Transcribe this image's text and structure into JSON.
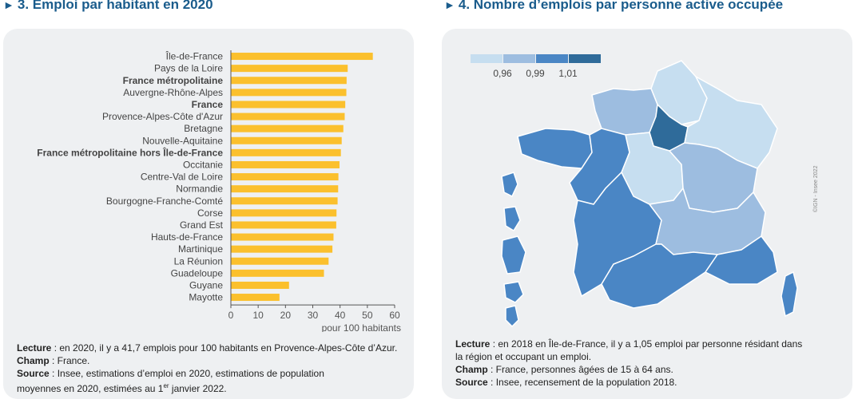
{
  "left": {
    "title": "3. Emploi par habitant en 2020",
    "chart_data": {
      "type": "bar",
      "orientation": "horizontal",
      "categories": [
        "Île-de-France",
        "Pays de la Loire",
        "France métropolitaine",
        "Auvergne-Rhône-Alpes",
        "France",
        "Provence-Alpes-Côte d'Azur",
        "Bretagne",
        "Nouvelle-Aquitaine",
        "France métropolitaine hors Île-de-France",
        "Occitanie",
        "Centre-Val de Loire",
        "Normandie",
        "Bourgogne-Franche-Comté",
        "Corse",
        "Grand Est",
        "Hauts-de-France",
        "Martinique",
        "La Réunion",
        "Guadeloupe",
        "Guyane",
        "Mayotte"
      ],
      "bold_categories": [
        "France métropolitaine",
        "France",
        "France métropolitaine hors Île-de-France"
      ],
      "values": [
        52.0,
        42.8,
        42.4,
        42.3,
        41.9,
        41.7,
        41.2,
        40.6,
        40.3,
        39.8,
        39.4,
        39.3,
        39.1,
        38.7,
        38.6,
        37.6,
        37.2,
        35.8,
        34.1,
        21.3,
        17.8
      ],
      "xlim": [
        0,
        60
      ],
      "xticks": [
        "0",
        "10",
        "20",
        "30",
        "40",
        "50",
        "60"
      ],
      "xlabel": "pour 100 habitants",
      "bar_color": "#fbc02d",
      "grid": false
    },
    "notes": {
      "lecture_label": "Lecture",
      "lecture_text": " : en 2020, il y a 41,7 emplois pour 100 habitants en Provence-Alpes-Côte d’Azur.",
      "champ_label": "Champ",
      "champ_text": " : France.",
      "source_label": "Source",
      "source_text_1": " : Insee, estimations d’emploi en 2020, estimations de population",
      "source_text_2": "moyennes en 2020, estimées au 1",
      "source_sup": "er",
      "source_text_3": " janvier 2022."
    }
  },
  "right": {
    "title": "4. Nombre d’emplois par personne active occupée",
    "legend": {
      "thresholds": [
        "0,96",
        "0,99",
        "1,01"
      ],
      "colors": [
        "#c6def0",
        "#9dbde0",
        "#4a86c5",
        "#2f6b9a"
      ]
    },
    "map_data": {
      "type": "choropleth",
      "regions": [
        {
          "name": "Hauts-de-France",
          "class": 1
        },
        {
          "name": "Normandie",
          "class": 2
        },
        {
          "name": "Île-de-France",
          "class": 4
        },
        {
          "name": "Grand Est",
          "class": 1
        },
        {
          "name": "Bretagne",
          "class": 3
        },
        {
          "name": "Pays de la Loire",
          "class": 3
        },
        {
          "name": "Centre-Val de Loire",
          "class": 1
        },
        {
          "name": "Bourgogne-Franche-Comté",
          "class": 2
        },
        {
          "name": "Nouvelle-Aquitaine",
          "class": 3
        },
        {
          "name": "Auvergne-Rhône-Alpes",
          "class": 2
        },
        {
          "name": "Occitanie",
          "class": 3
        },
        {
          "name": "Provence-Alpes-Côte d'Azur",
          "class": 3
        },
        {
          "name": "Corse",
          "class": 3
        },
        {
          "name": "Guadeloupe",
          "class": 3
        },
        {
          "name": "Martinique",
          "class": 3
        },
        {
          "name": "Guyane",
          "class": 3
        },
        {
          "name": "La Réunion",
          "class": 3
        },
        {
          "name": "Mayotte",
          "class": 3
        }
      ]
    },
    "credit": "©IGN - Insee 2022",
    "notes": {
      "lecture_label": "Lecture",
      "lecture_text_1": " : en 2018 en Île-de-France, il y a 1,05 emploi par personne résidant dans",
      "lecture_text_2": "la région et occupant un emploi.",
      "champ_label": "Champ",
      "champ_text": " : France, personnes âgées de 15 à 64 ans.",
      "source_label": "Source",
      "source_text": " : Insee, recensement de la population 2018."
    }
  }
}
